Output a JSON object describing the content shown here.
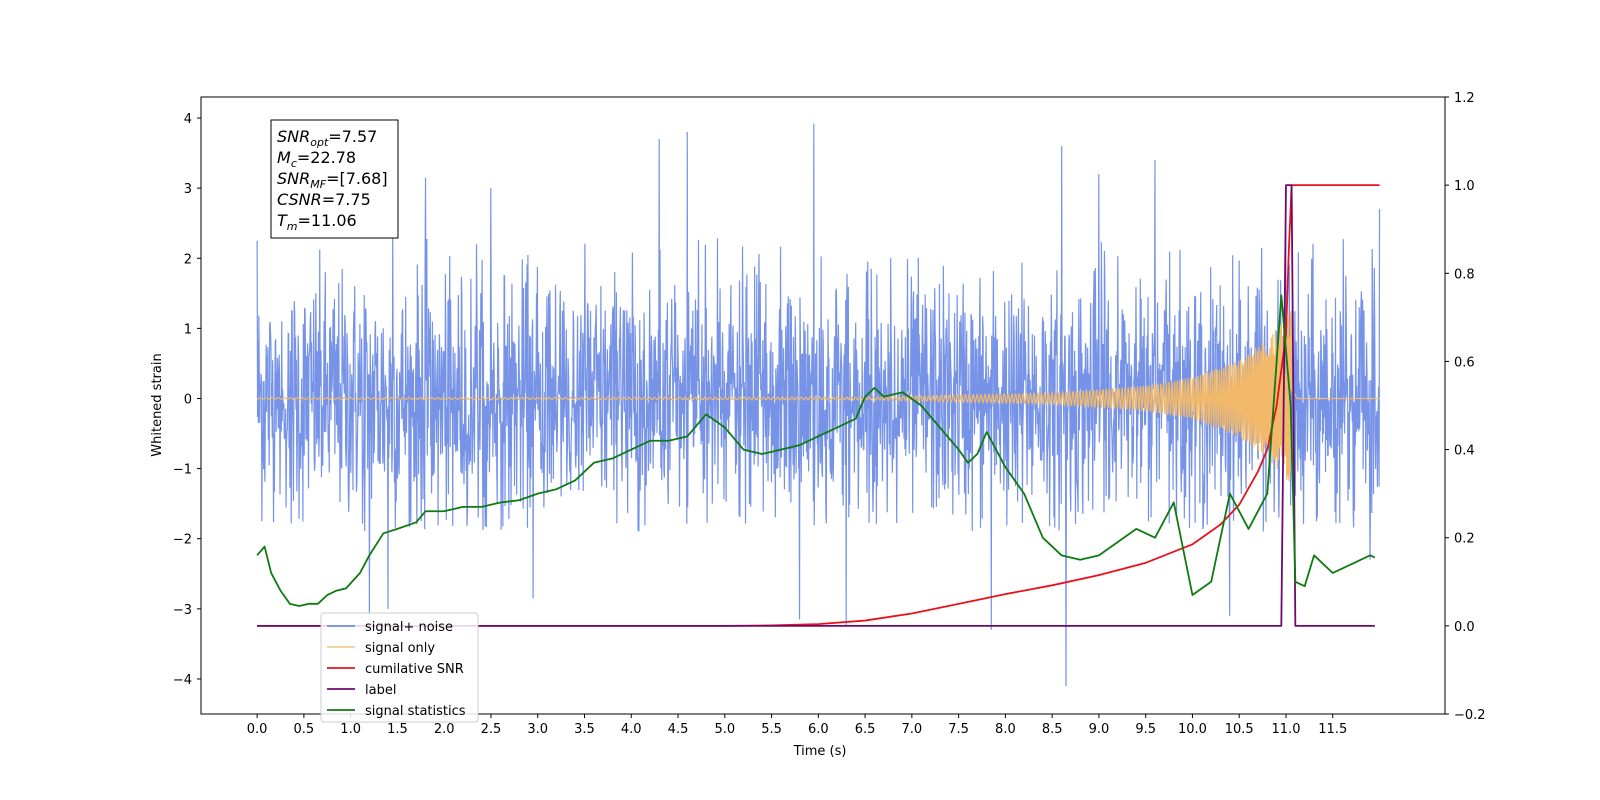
{
  "chart_data": {
    "type": "line",
    "title": "",
    "xlabel": "Time (s)",
    "ylabel": "Whitened strain",
    "y2label": "",
    "xlim": [
      -0.6,
      12.7
    ],
    "ylim": [
      -4.5,
      4.3
    ],
    "y2lim": [
      -0.2,
      1.2
    ],
    "x_ticks": [
      0.0,
      0.5,
      1.0,
      1.5,
      2.0,
      2.5,
      3.0,
      3.5,
      4.0,
      4.5,
      5.0,
      5.5,
      6.0,
      6.5,
      7.0,
      7.5,
      8.0,
      8.5,
      9.0,
      9.5,
      10.0,
      10.5,
      11.0,
      11.5
    ],
    "x_tick_labels": [
      "0.0",
      "0.5",
      "1.0",
      "1.5",
      "2.0",
      "2.5",
      "3.0",
      "3.5",
      "4.0",
      "4.5",
      "5.0",
      "5.5",
      "6.0",
      "6.5",
      "7.0",
      "7.5",
      "8.0",
      "8.5",
      "9.0",
      "9.5",
      "10.0",
      "10.5",
      "11.0",
      "11.5"
    ],
    "y_ticks": [
      -4,
      -3,
      -2,
      -1,
      0,
      1,
      2,
      3,
      4
    ],
    "y_tick_labels": [
      "−4",
      "−3",
      "−2",
      "−1",
      "0",
      "1",
      "2",
      "3",
      "4"
    ],
    "y2_ticks": [
      -0.2,
      0.0,
      0.2,
      0.4,
      0.6,
      0.8,
      1.0,
      1.2
    ],
    "y2_tick_labels": [
      "−0.2",
      "0.0",
      "0.2",
      "0.4",
      "0.6",
      "0.8",
      "1.0",
      "1.2"
    ],
    "legend_position": "lower-left",
    "grid": false,
    "colors": {
      "noise": "#6f8de6",
      "signal": "#f2b96a",
      "cumsnr": "#e8121b",
      "label": "#6e0a6e",
      "stats": "#0f7a12"
    },
    "annotation": {
      "lines": [
        {
          "main": "SNR",
          "sub": "opt",
          "rest": "=7.57"
        },
        {
          "main": "M",
          "sub": "c",
          "rest": "=22.78"
        },
        {
          "main": "SNR",
          "sub": "MF",
          "rest": "=[7.68]"
        },
        {
          "main": "CSNR",
          "sub": "",
          "rest": "=7.75"
        },
        {
          "main": "T",
          "sub": "m",
          "rest": "=11.06"
        }
      ]
    },
    "series": [
      {
        "name": "signal+ noise",
        "axis": "left",
        "kind": "noise",
        "x_range": [
          0.0,
          12.0
        ],
        "envelope_upper": 2.3,
        "envelope_lower": -1.9,
        "peaks": [
          {
            "x": 0.0,
            "y": 2.25
          },
          {
            "x": 1.45,
            "y": 2.4
          },
          {
            "x": 1.8,
            "y": 3.15
          },
          {
            "x": 2.5,
            "y": 3.0
          },
          {
            "x": 4.3,
            "y": 3.7
          },
          {
            "x": 4.6,
            "y": 3.8
          },
          {
            "x": 5.95,
            "y": 3.92
          },
          {
            "x": 6.3,
            "y": 3.0
          },
          {
            "x": 8.6,
            "y": 3.6
          },
          {
            "x": 9.0,
            "y": 3.2
          },
          {
            "x": 9.6,
            "y": 3.4
          },
          {
            "x": 11.0,
            "y": 2.4
          },
          {
            "x": 12.0,
            "y": 2.7
          }
        ],
        "troughs": [
          {
            "x": 1.2,
            "y": -3.1
          },
          {
            "x": 1.4,
            "y": -3.0
          },
          {
            "x": 2.95,
            "y": -2.85
          },
          {
            "x": 5.8,
            "y": -3.15
          },
          {
            "x": 6.3,
            "y": -3.25
          },
          {
            "x": 7.85,
            "y": -3.3
          },
          {
            "x": 8.65,
            "y": -4.1
          },
          {
            "x": 10.4,
            "y": -3.1
          },
          {
            "x": 11.9,
            "y": -2.3
          }
        ]
      },
      {
        "name": "signal only",
        "axis": "left",
        "kind": "chirp",
        "x_range": [
          0.0,
          12.0
        ],
        "merger_time": 11.06,
        "amplitude": [
          [
            0.0,
            0.01
          ],
          [
            6.5,
            0.02
          ],
          [
            7.5,
            0.05
          ],
          [
            8.5,
            0.08
          ],
          [
            9.5,
            0.18
          ],
          [
            10.0,
            0.3
          ],
          [
            10.5,
            0.55
          ],
          [
            10.8,
            0.85
          ],
          [
            11.0,
            1.15
          ],
          [
            11.06,
            1.25
          ],
          [
            11.12,
            0.0
          ],
          [
            12.0,
            0.0
          ]
        ]
      },
      {
        "name": "cumilative SNR",
        "axis": "right",
        "x": [
          0.0,
          5.0,
          5.5,
          6.0,
          6.5,
          7.0,
          7.5,
          8.0,
          8.5,
          9.0,
          9.5,
          10.0,
          10.3,
          10.5,
          10.7,
          10.8,
          10.9,
          11.0,
          11.03,
          11.06,
          11.5,
          12.0
        ],
        "values": [
          0.0,
          0.0,
          0.001,
          0.004,
          0.012,
          0.028,
          0.05,
          0.072,
          0.092,
          0.115,
          0.143,
          0.185,
          0.23,
          0.275,
          0.35,
          0.4,
          0.5,
          0.66,
          0.85,
          1.0,
          1.0,
          1.0
        ]
      },
      {
        "name": "label",
        "axis": "right",
        "x": [
          0.0,
          10.95,
          11.0,
          11.06,
          11.1,
          11.95
        ],
        "values": [
          0.0,
          0.0,
          1.0,
          1.0,
          0.0,
          0.0
        ]
      },
      {
        "name": "signal statistics",
        "axis": "right",
        "x": [
          0.0,
          0.08,
          0.15,
          0.25,
          0.35,
          0.45,
          0.55,
          0.65,
          0.75,
          0.85,
          0.95,
          1.1,
          1.2,
          1.35,
          1.5,
          1.7,
          1.8,
          2.0,
          2.2,
          2.4,
          2.6,
          2.8,
          3.0,
          3.2,
          3.4,
          3.6,
          3.8,
          4.0,
          4.2,
          4.4,
          4.6,
          4.8,
          5.0,
          5.2,
          5.4,
          5.6,
          5.8,
          6.0,
          6.2,
          6.4,
          6.5,
          6.6,
          6.7,
          6.9,
          7.1,
          7.3,
          7.5,
          7.6,
          7.7,
          7.8,
          8.0,
          8.2,
          8.4,
          8.6,
          8.8,
          9.0,
          9.2,
          9.4,
          9.6,
          9.8,
          10.0,
          10.2,
          10.4,
          10.6,
          10.8,
          10.95,
          11.05,
          11.1,
          11.2,
          11.3,
          11.4,
          11.5,
          11.7,
          11.9,
          11.95
        ],
        "values": [
          0.16,
          0.18,
          0.12,
          0.08,
          0.05,
          0.045,
          0.05,
          0.05,
          0.07,
          0.08,
          0.085,
          0.12,
          0.16,
          0.21,
          0.22,
          0.235,
          0.26,
          0.26,
          0.27,
          0.27,
          0.28,
          0.285,
          0.3,
          0.31,
          0.33,
          0.37,
          0.38,
          0.4,
          0.42,
          0.42,
          0.43,
          0.48,
          0.45,
          0.4,
          0.39,
          0.4,
          0.41,
          0.43,
          0.45,
          0.47,
          0.52,
          0.54,
          0.52,
          0.53,
          0.5,
          0.45,
          0.4,
          0.37,
          0.39,
          0.44,
          0.36,
          0.3,
          0.2,
          0.16,
          0.15,
          0.16,
          0.19,
          0.22,
          0.2,
          0.28,
          0.07,
          0.1,
          0.3,
          0.22,
          0.3,
          0.75,
          0.5,
          0.1,
          0.09,
          0.16,
          0.14,
          0.12,
          0.14,
          0.16,
          0.155
        ]
      }
    ]
  }
}
